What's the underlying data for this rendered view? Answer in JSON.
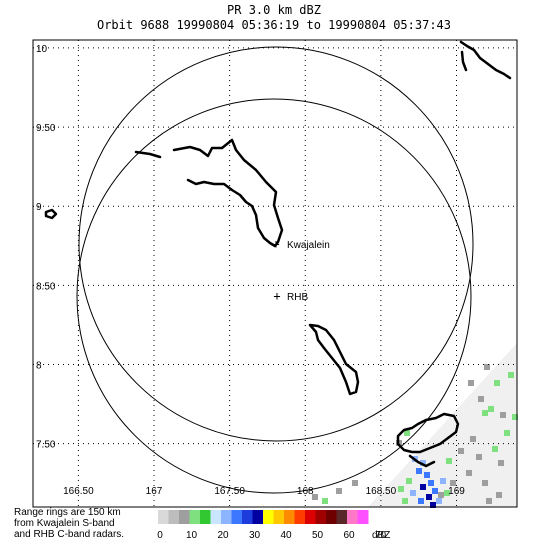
{
  "header": {
    "title": "PR  3.0 km dBZ",
    "subtitle": "Orbit 9688 19990804 05:36:19 to 19990804 05:37:43"
  },
  "map": {
    "lon_range": [
      166.2,
      169.4
    ],
    "lat_range": [
      7.1,
      10.05
    ],
    "lon_ticks": [
      {
        "value": 166.5,
        "label": "166.50"
      },
      {
        "value": 167.0,
        "label": "167"
      },
      {
        "value": 167.5,
        "label": "167.50"
      },
      {
        "value": 168.0,
        "label": "168"
      },
      {
        "value": 168.5,
        "label": "168.50"
      },
      {
        "value": 169.0,
        "label": "169"
      }
    ],
    "lat_ticks": [
      {
        "value": 10.0,
        "label": "10"
      },
      {
        "value": 9.5,
        "label": "9.50"
      },
      {
        "value": 9.0,
        "label": "9"
      },
      {
        "value": 8.5,
        "label": "8.50"
      },
      {
        "value": 8.0,
        "label": "8"
      },
      {
        "value": 7.5,
        "label": "7.50"
      }
    ],
    "gridlines": true,
    "stations": [
      {
        "name": "Kwajalein",
        "label": "Kwajalein",
        "marker": "+"
      },
      {
        "name": "RHB",
        "label": "RHB",
        "marker": "+"
      }
    ],
    "range_ring_km": 150
  },
  "note": {
    "line1": "Range rings are 150 km",
    "line2": "from Kwajalein S-band",
    "line3": "and RHB C-band radars."
  },
  "colorbar": {
    "unit": "dBZ",
    "colors": [
      "#d9d9d9",
      "#bdbdbd",
      "#9e9e9e",
      "#7fe07f",
      "#32c832",
      "#c8e6ff",
      "#8cb4ff",
      "#3c78ff",
      "#1e3cdc",
      "#0000a0",
      "#ffff00",
      "#ffc800",
      "#ff8c00",
      "#ff3c00",
      "#dc0000",
      "#a00000",
      "#6e0000",
      "#5a2828",
      "#ff78c8",
      "#ff50ff"
    ],
    "labels": [
      "0",
      "10",
      "20",
      "30",
      "40",
      "50",
      "60",
      "70"
    ]
  },
  "rain": {
    "colors": {
      "light": "#f0f0f0",
      "gray": "#9e9e9e",
      "green": "#7fe07f",
      "blue": "#3c78ff",
      "dark_blue": "#0000a0",
      "light_blue": "#8cb4ff"
    }
  }
}
